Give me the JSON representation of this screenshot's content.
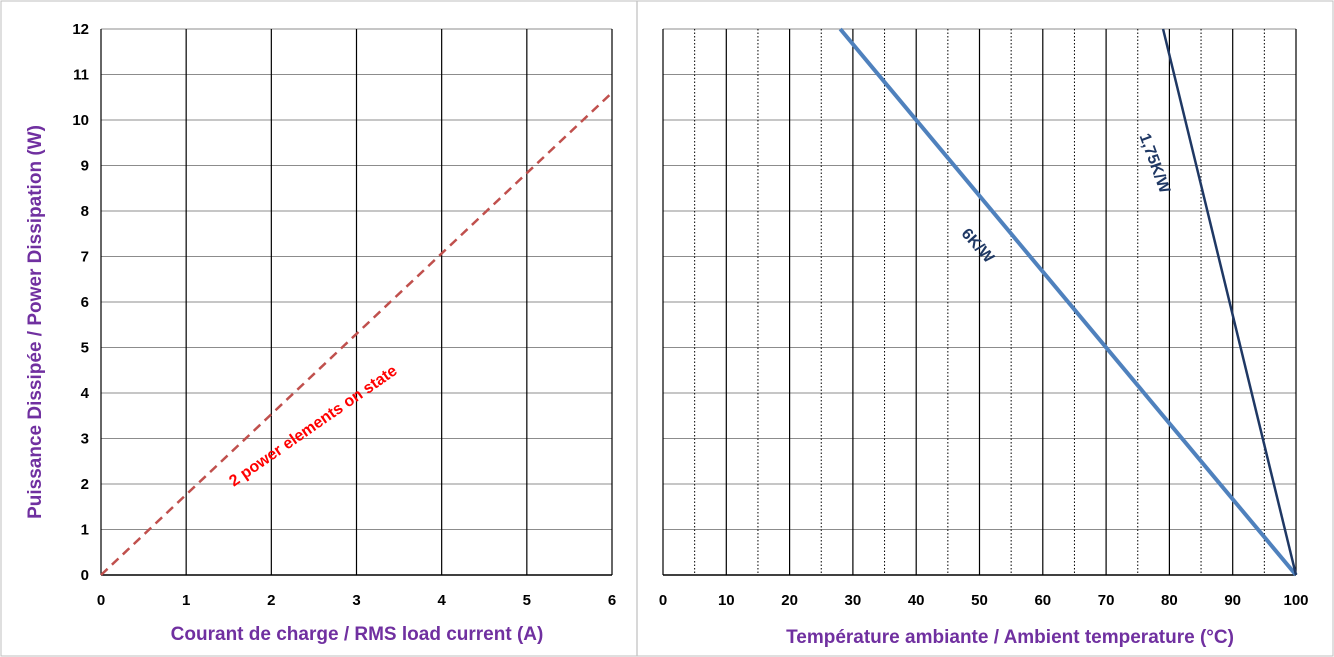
{
  "chart_data": [
    {
      "type": "line",
      "xlabel": "Courant de charge / RMS load current (A)",
      "ylabel": "Puissance Dissipée / Power Dissipation (W)",
      "xlim": [
        0,
        6
      ],
      "ylim": [
        0,
        12
      ],
      "x_ticks": [
        "0",
        "1",
        "2",
        "3",
        "4",
        "5",
        "6"
      ],
      "y_ticks": [
        "0",
        "1",
        "2",
        "3",
        "4",
        "5",
        "6",
        "7",
        "8",
        "9",
        "10",
        "11",
        "12"
      ],
      "grid": true,
      "series": [
        {
          "name": "2 power elements on state",
          "style": "dashed",
          "color": "#c0504d",
          "x": [
            0,
            6
          ],
          "y": [
            0,
            10.6
          ]
        }
      ],
      "annotations": [
        {
          "text": "2 power elements on state",
          "color": "#ff0000"
        }
      ]
    },
    {
      "type": "line",
      "xlabel": "Température ambiante / Ambient temperature (°C)",
      "ylabel": "",
      "xlim": [
        0,
        100
      ],
      "ylim": [
        0,
        12
      ],
      "x_ticks": [
        "0",
        "10",
        "20",
        "30",
        "40",
        "50",
        "60",
        "70",
        "80",
        "90",
        "100"
      ],
      "grid": true,
      "series": [
        {
          "name": "6K/W",
          "color": "#4f81bd",
          "x": [
            28,
            100
          ],
          "y": [
            12,
            0
          ]
        },
        {
          "name": "1,75K/W",
          "color": "#1f3864",
          "x": [
            79,
            100
          ],
          "y": [
            12,
            0
          ]
        }
      ],
      "annotations": [
        {
          "text": "6K/W",
          "color": "#1f3864"
        },
        {
          "text": "1,75K/W",
          "color": "#1f3864"
        }
      ]
    }
  ]
}
